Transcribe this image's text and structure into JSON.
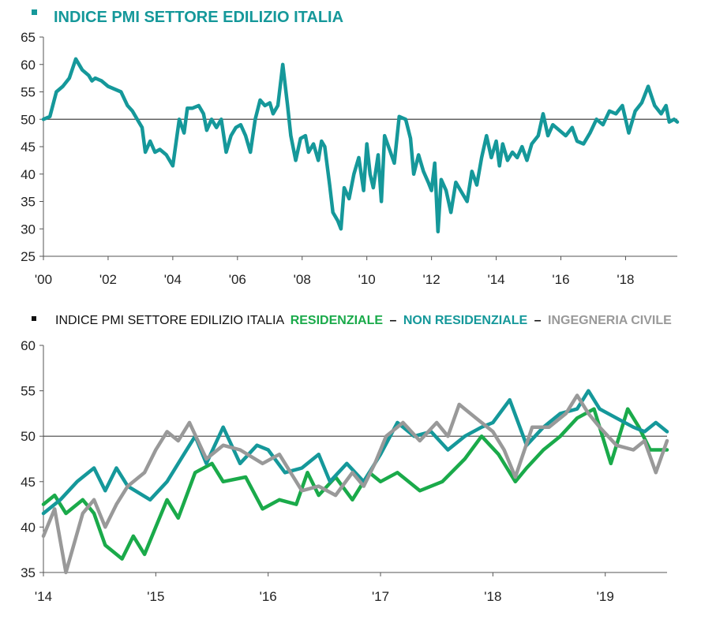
{
  "chart_data": [
    {
      "type": "line",
      "title": "INDICE PMI SETTORE EDILIZIO ITALIA",
      "ylim": [
        25,
        65
      ],
      "yticks": [
        25,
        30,
        35,
        40,
        45,
        50,
        55,
        60,
        65
      ],
      "xlim": [
        2000.0,
        2019.6
      ],
      "xtick_labels": [
        "'00",
        "'02",
        "'04",
        "'06",
        "'08",
        "'10",
        "'12",
        "'14",
        "'16",
        "'18"
      ],
      "reference_line": 50,
      "grid": false,
      "series": [
        {
          "color": "#15989a",
          "points": [
            [
              2000.0,
              50
            ],
            [
              2000.2,
              50.5
            ],
            [
              2000.4,
              55
            ],
            [
              2000.6,
              56
            ],
            [
              2000.8,
              57.5
            ],
            [
              2001.0,
              61
            ],
            [
              2001.2,
              59
            ],
            [
              2001.4,
              58
            ],
            [
              2001.5,
              57
            ],
            [
              2001.6,
              57.5
            ],
            [
              2001.8,
              57
            ],
            [
              2002.0,
              56
            ],
            [
              2002.2,
              55.5
            ],
            [
              2002.4,
              55
            ],
            [
              2002.6,
              52.5
            ],
            [
              2002.75,
              51.5
            ],
            [
              2002.9,
              50
            ],
            [
              2003.05,
              48.5
            ],
            [
              2003.15,
              44
            ],
            [
              2003.3,
              46
            ],
            [
              2003.45,
              44
            ],
            [
              2003.6,
              44.5
            ],
            [
              2003.8,
              43.5
            ],
            [
              2004.0,
              41.5
            ],
            [
              2004.2,
              50
            ],
            [
              2004.35,
              47.5
            ],
            [
              2004.45,
              52
            ],
            [
              2004.6,
              52
            ],
            [
              2004.8,
              52.5
            ],
            [
              2004.95,
              51
            ],
            [
              2005.05,
              48
            ],
            [
              2005.2,
              50
            ],
            [
              2005.35,
              48.5
            ],
            [
              2005.5,
              50
            ],
            [
              2005.65,
              44
            ],
            [
              2005.8,
              47
            ],
            [
              2005.95,
              48.5
            ],
            [
              2006.1,
              49
            ],
            [
              2006.25,
              47
            ],
            [
              2006.4,
              44
            ],
            [
              2006.55,
              50
            ],
            [
              2006.7,
              53.5
            ],
            [
              2006.85,
              52.5
            ],
            [
              2007.0,
              53
            ],
            [
              2007.1,
              51
            ],
            [
              2007.25,
              52.5
            ],
            [
              2007.4,
              60
            ],
            [
              2007.55,
              52.5
            ],
            [
              2007.65,
              47
            ],
            [
              2007.8,
              42.5
            ],
            [
              2007.95,
              46.5
            ],
            [
              2008.1,
              47
            ],
            [
              2008.2,
              44
            ],
            [
              2008.35,
              45.5
            ],
            [
              2008.5,
              42.5
            ],
            [
              2008.6,
              46
            ],
            [
              2008.7,
              45
            ],
            [
              2008.85,
              38
            ],
            [
              2008.95,
              33
            ],
            [
              2009.1,
              31.5
            ],
            [
              2009.2,
              30
            ],
            [
              2009.3,
              37.5
            ],
            [
              2009.45,
              35.5
            ],
            [
              2009.6,
              40
            ],
            [
              2009.75,
              43
            ],
            [
              2009.9,
              37
            ],
            [
              2010.0,
              45.5
            ],
            [
              2010.1,
              40
            ],
            [
              2010.2,
              37.5
            ],
            [
              2010.35,
              43.5
            ],
            [
              2010.45,
              35
            ],
            [
              2010.55,
              47
            ],
            [
              2010.7,
              44.5
            ],
            [
              2010.85,
              42
            ],
            [
              2011.0,
              50.5
            ],
            [
              2011.2,
              50
            ],
            [
              2011.35,
              46.5
            ],
            [
              2011.45,
              40
            ],
            [
              2011.6,
              43.5
            ],
            [
              2011.75,
              40.5
            ],
            [
              2011.9,
              38.5
            ],
            [
              2012.0,
              37
            ],
            [
              2012.1,
              42
            ],
            [
              2012.2,
              29.5
            ],
            [
              2012.3,
              39
            ],
            [
              2012.45,
              37
            ],
            [
              2012.6,
              33
            ],
            [
              2012.75,
              38.5
            ],
            [
              2012.9,
              37
            ],
            [
              2013.1,
              35
            ],
            [
              2013.25,
              40.5
            ],
            [
              2013.4,
              38
            ],
            [
              2013.55,
              43
            ],
            [
              2013.7,
              47
            ],
            [
              2013.85,
              43
            ],
            [
              2014.0,
              46
            ],
            [
              2014.1,
              41.5
            ],
            [
              2014.2,
              45.5
            ],
            [
              2014.35,
              42.5
            ],
            [
              2014.5,
              44
            ],
            [
              2014.65,
              43
            ],
            [
              2014.8,
              45
            ],
            [
              2014.95,
              42.5
            ],
            [
              2015.1,
              45.5
            ],
            [
              2015.3,
              47
            ],
            [
              2015.45,
              51
            ],
            [
              2015.6,
              47
            ],
            [
              2015.75,
              49
            ],
            [
              2015.95,
              48
            ],
            [
              2016.15,
              47
            ],
            [
              2016.35,
              48.5
            ],
            [
              2016.5,
              46
            ],
            [
              2016.7,
              45.5
            ],
            [
              2016.9,
              47.5
            ],
            [
              2017.1,
              50
            ],
            [
              2017.3,
              49
            ],
            [
              2017.5,
              51.5
            ],
            [
              2017.7,
              51
            ],
            [
              2017.9,
              52.5
            ],
            [
              2018.1,
              47.5
            ],
            [
              2018.3,
              51.5
            ],
            [
              2018.5,
              53
            ],
            [
              2018.7,
              56
            ],
            [
              2018.9,
              52.5
            ],
            [
              2019.1,
              51
            ],
            [
              2019.25,
              52.5
            ],
            [
              2019.35,
              49.5
            ],
            [
              2019.5,
              50
            ],
            [
              2019.6,
              49.5
            ]
          ]
        }
      ]
    },
    {
      "type": "line",
      "title": "INDICE PMI SETTORE EDILIZIO ITALIA",
      "title_parts": [
        "INDICE PMI SETTORE EDILIZIO ITALIA",
        "RESIDENZIALE",
        "–",
        "NON RESIDENZIALE",
        "–",
        "INGEGNERIA CIVILE"
      ],
      "ylim": [
        35,
        60
      ],
      "yticks": [
        35,
        40,
        45,
        50,
        55,
        60
      ],
      "xlim": [
        2014.0,
        2019.55
      ],
      "xtick_labels": [
        "'14",
        "'15",
        "'16",
        "'17",
        "'18",
        "'19"
      ],
      "reference_line": 50,
      "grid": false,
      "series": [
        {
          "name": "RESIDENZIALE",
          "color": "#1aaa4a",
          "points": [
            [
              2014.0,
              42.5
            ],
            [
              2014.1,
              43.5
            ],
            [
              2014.2,
              41.5
            ],
            [
              2014.35,
              43
            ],
            [
              2014.45,
              41.5
            ],
            [
              2014.55,
              38
            ],
            [
              2014.7,
              36.5
            ],
            [
              2014.8,
              39
            ],
            [
              2014.9,
              37
            ],
            [
              2015.0,
              40
            ],
            [
              2015.1,
              43
            ],
            [
              2015.2,
              41
            ],
            [
              2015.35,
              46
            ],
            [
              2015.5,
              47
            ],
            [
              2015.6,
              45
            ],
            [
              2015.8,
              45.5
            ],
            [
              2015.95,
              42
            ],
            [
              2016.1,
              43
            ],
            [
              2016.25,
              42.5
            ],
            [
              2016.35,
              46
            ],
            [
              2016.45,
              43.5
            ],
            [
              2016.6,
              45.5
            ],
            [
              2016.75,
              43
            ],
            [
              2016.9,
              46
            ],
            [
              2017.0,
              45
            ],
            [
              2017.15,
              46
            ],
            [
              2017.35,
              44
            ],
            [
              2017.55,
              45
            ],
            [
              2017.75,
              47.5
            ],
            [
              2017.9,
              50
            ],
            [
              2018.05,
              48
            ],
            [
              2018.2,
              45
            ],
            [
              2018.3,
              46.5
            ],
            [
              2018.45,
              48.5
            ],
            [
              2018.6,
              50
            ],
            [
              2018.75,
              52
            ],
            [
              2018.9,
              53
            ],
            [
              2019.05,
              47
            ],
            [
              2019.2,
              53
            ],
            [
              2019.3,
              51
            ],
            [
              2019.4,
              48.5
            ],
            [
              2019.55,
              48.5
            ]
          ]
        },
        {
          "name": "NON RESIDENZIALE",
          "color": "#15989a",
          "points": [
            [
              2014.0,
              41.5
            ],
            [
              2014.15,
              43
            ],
            [
              2014.3,
              45
            ],
            [
              2014.45,
              46.5
            ],
            [
              2014.55,
              44
            ],
            [
              2014.65,
              46.5
            ],
            [
              2014.75,
              44.5
            ],
            [
              2014.95,
              43
            ],
            [
              2015.1,
              45
            ],
            [
              2015.25,
              48
            ],
            [
              2015.35,
              50
            ],
            [
              2015.45,
              47
            ],
            [
              2015.6,
              51
            ],
            [
              2015.75,
              47
            ],
            [
              2015.9,
              49
            ],
            [
              2016.0,
              48.5
            ],
            [
              2016.15,
              46
            ],
            [
              2016.3,
              46.5
            ],
            [
              2016.45,
              48
            ],
            [
              2016.55,
              45
            ],
            [
              2016.7,
              47
            ],
            [
              2016.85,
              45
            ],
            [
              2017.0,
              48
            ],
            [
              2017.15,
              51.5
            ],
            [
              2017.3,
              50
            ],
            [
              2017.45,
              50.5
            ],
            [
              2017.6,
              48.5
            ],
            [
              2017.75,
              50
            ],
            [
              2017.9,
              51
            ],
            [
              2018.0,
              51.5
            ],
            [
              2018.15,
              54
            ],
            [
              2018.3,
              49
            ],
            [
              2018.45,
              51
            ],
            [
              2018.6,
              52.5
            ],
            [
              2018.75,
              53
            ],
            [
              2018.85,
              55
            ],
            [
              2018.95,
              53
            ],
            [
              2019.1,
              52
            ],
            [
              2019.25,
              51
            ],
            [
              2019.35,
              50.5
            ],
            [
              2019.45,
              51.5
            ],
            [
              2019.55,
              50.5
            ]
          ]
        },
        {
          "name": "INGEGNERIA CIVILE",
          "color": "#999999",
          "points": [
            [
              2014.0,
              39
            ],
            [
              2014.1,
              42
            ],
            [
              2014.2,
              35
            ],
            [
              2014.35,
              41.5
            ],
            [
              2014.45,
              43
            ],
            [
              2014.55,
              40
            ],
            [
              2014.65,
              42.5
            ],
            [
              2014.75,
              44.5
            ],
            [
              2014.9,
              46
            ],
            [
              2015.0,
              48.5
            ],
            [
              2015.1,
              50.5
            ],
            [
              2015.2,
              49.5
            ],
            [
              2015.3,
              51.5
            ],
            [
              2015.45,
              47.5
            ],
            [
              2015.6,
              49
            ],
            [
              2015.75,
              48.5
            ],
            [
              2015.95,
              47
            ],
            [
              2016.1,
              48
            ],
            [
              2016.3,
              44
            ],
            [
              2016.45,
              44.5
            ],
            [
              2016.6,
              43.5
            ],
            [
              2016.75,
              46
            ],
            [
              2016.85,
              44.5
            ],
            [
              2016.95,
              47
            ],
            [
              2017.05,
              50
            ],
            [
              2017.2,
              51.5
            ],
            [
              2017.35,
              49.5
            ],
            [
              2017.5,
              51.5
            ],
            [
              2017.6,
              50
            ],
            [
              2017.7,
              53.5
            ],
            [
              2017.85,
              52
            ],
            [
              2018.0,
              50.5
            ],
            [
              2018.1,
              48.5
            ],
            [
              2018.2,
              45.5
            ],
            [
              2018.35,
              51
            ],
            [
              2018.5,
              51
            ],
            [
              2018.65,
              52.5
            ],
            [
              2018.75,
              54.5
            ],
            [
              2018.85,
              52.5
            ],
            [
              2018.95,
              51
            ],
            [
              2019.1,
              49
            ],
            [
              2019.25,
              48.5
            ],
            [
              2019.35,
              49.5
            ],
            [
              2019.45,
              46
            ],
            [
              2019.55,
              49.5
            ]
          ]
        }
      ]
    }
  ]
}
